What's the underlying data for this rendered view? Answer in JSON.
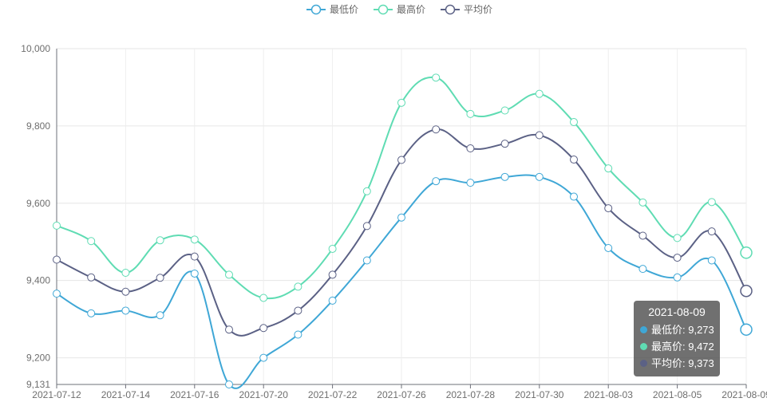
{
  "chart_data": {
    "type": "line",
    "smooth": true,
    "x": [
      "2021-07-12",
      "2021-07-13",
      "2021-07-14",
      "2021-07-15",
      "2021-07-16",
      "2021-07-19",
      "2021-07-20",
      "2021-07-21",
      "2021-07-22",
      "2021-07-23",
      "2021-07-26",
      "2021-07-27",
      "2021-07-28",
      "2021-07-29",
      "2021-07-30",
      "2021-08-02",
      "2021-08-03",
      "2021-08-04",
      "2021-08-05",
      "2021-08-06",
      "2021-08-09"
    ],
    "x_tick_labels": [
      "2021-07-12",
      "2021-07-14",
      "2021-07-16",
      "2021-07-20",
      "2021-07-22",
      "2021-07-26",
      "2021-07-28",
      "2021-07-30",
      "2021-08-03",
      "2021-08-05",
      "2021-08-09"
    ],
    "x_tick_index": [
      0,
      2,
      4,
      6,
      8,
      10,
      12,
      14,
      16,
      18,
      20
    ],
    "y_ticks": [
      9131,
      9200,
      9400,
      9600,
      9800,
      10000
    ],
    "y_tick_labels": [
      "9,131",
      "9,200",
      "9,400",
      "9,600",
      "9,800",
      "10,000"
    ],
    "ylim": [
      9131,
      10000
    ],
    "grid": true,
    "legend_position": "top-center",
    "series": [
      {
        "name": "最低价",
        "color": "#3fa7d6",
        "values": [
          9366,
          9315,
          9322,
          9310,
          9418,
          9131,
          9200,
          9260,
          9348,
          9452,
          9563,
          9657,
          9653,
          9668,
          9668,
          9617,
          9484,
          9430,
          9408,
          9452,
          9273
        ]
      },
      {
        "name": "最高价",
        "color": "#5fdcb3",
        "values": [
          9542,
          9502,
          9420,
          9504,
          9506,
          9415,
          9355,
          9384,
          9482,
          9631,
          9860,
          9925,
          9831,
          9840,
          9883,
          9810,
          9690,
          9602,
          9510,
          9603,
          9472
        ]
      },
      {
        "name": "平均价",
        "color": "#5b6185",
        "values": [
          9454,
          9408,
          9371,
          9407,
          9462,
          9273,
          9277,
          9322,
          9415,
          9541,
          9712,
          9791,
          9742,
          9754,
          9776,
          9713,
          9587,
          9516,
          9459,
          9527,
          9373
        ]
      }
    ]
  },
  "tooltip": {
    "date": "2021-08-09",
    "rows": [
      {
        "label": "最低价: 9,273",
        "color": "#3fa7d6"
      },
      {
        "label": "最高价: 9,472",
        "color": "#5fdcb3"
      },
      {
        "label": "平均价: 9,373",
        "color": "#5b6185"
      }
    ]
  }
}
